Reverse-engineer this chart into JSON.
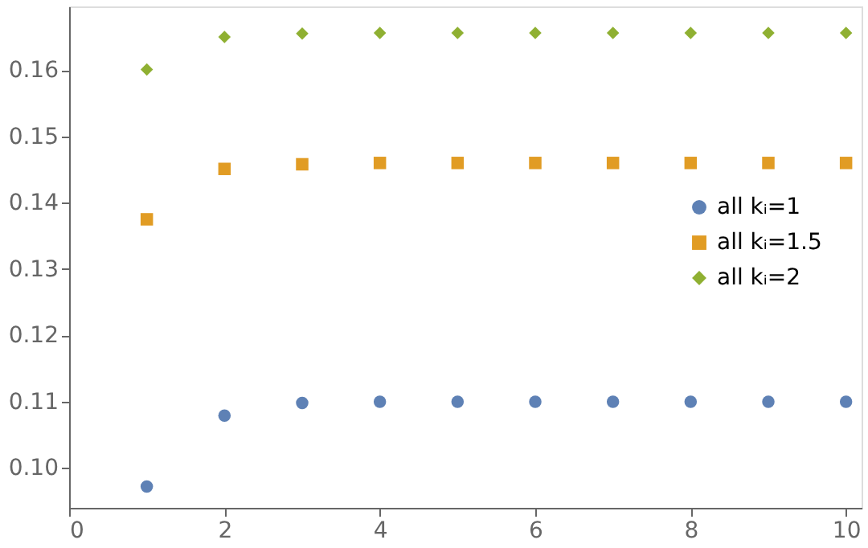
{
  "chart_data": {
    "type": "scatter",
    "x": [
      1,
      2,
      3,
      4,
      5,
      6,
      7,
      8,
      9,
      10
    ],
    "series": [
      {
        "name": "all kᵢ=1",
        "color": "#5e81b5",
        "marker": "circle",
        "values": [
          0.0972,
          0.1079,
          0.1098,
          0.11,
          0.11,
          0.11,
          0.11,
          0.11,
          0.11,
          0.11
        ]
      },
      {
        "name": "all kᵢ=1.5",
        "color": "#e19c24",
        "marker": "square",
        "values": [
          0.1375,
          0.1451,
          0.1458,
          0.146,
          0.146,
          0.146,
          0.146,
          0.146,
          0.146,
          0.146
        ]
      },
      {
        "name": "all kᵢ=2",
        "color": "#8fb032",
        "marker": "diamond",
        "values": [
          0.1601,
          0.165,
          0.1655,
          0.1656,
          0.1656,
          0.1656,
          0.1656,
          0.1656,
          0.1656,
          0.1656
        ]
      }
    ],
    "xlim": [
      0,
      10.2
    ],
    "ylim": [
      0.094,
      0.1696
    ],
    "xticks": [
      0,
      2,
      4,
      6,
      8,
      10
    ],
    "yticks": [
      {
        "value": 0.1,
        "label": "0.10"
      },
      {
        "value": 0.11,
        "label": "0.11"
      },
      {
        "value": 0.12,
        "label": "0.12"
      },
      {
        "value": 0.13,
        "label": "0.13"
      },
      {
        "value": 0.14,
        "label": "0.14"
      },
      {
        "value": 0.15,
        "label": "0.15"
      },
      {
        "value": 0.16,
        "label": "0.16"
      }
    ],
    "grid": false,
    "legend": "right"
  }
}
